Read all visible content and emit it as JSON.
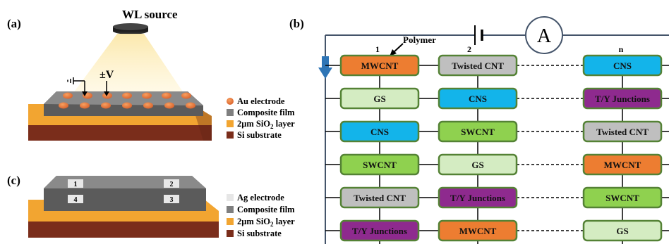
{
  "panel_a": {
    "label": "(a)",
    "source": "WL source",
    "voltage": "±V",
    "legend": [
      {
        "text": "Au electrode",
        "color": "#ee7d3b"
      },
      {
        "text": "Composite film",
        "color": "#7f7f7f"
      },
      {
        "text": "2μm SiO",
        "sub": "2",
        "tail": " layer",
        "color": "#f2a531"
      },
      {
        "text": "Si substrate",
        "color": "#7a2d1b"
      }
    ]
  },
  "panel_c": {
    "label": "(c)",
    "pads": [
      "1",
      "2",
      "4",
      "3"
    ],
    "legend": [
      {
        "text": "Ag electrode",
        "color": "#e6e6e6"
      },
      {
        "text": "Composite film",
        "color": "#7f7f7f"
      },
      {
        "text": "2μm SiO",
        "sub": "2",
        "tail": " layer",
        "color": "#f2a531"
      },
      {
        "text": "Si substrate",
        "color": "#7a2d1b"
      }
    ]
  },
  "panel_b": {
    "label": "(b)",
    "meter": "A",
    "polymer": "Polymer",
    "columns": [
      "1",
      "2",
      "n"
    ],
    "colors": {
      "MWCNT": "#ed7d31",
      "Twisted CNT": "#bfbfbf",
      "CNS": "#13b4ea",
      "GS": "#d4ecc2",
      "T/Y Junctions": "#8e2a8e",
      "SWCNT": "#8fd14f"
    },
    "rows": [
      [
        "MWCNT",
        "Twisted CNT",
        "CNS"
      ],
      [
        "GS",
        "CNS",
        "T/Y Junctions"
      ],
      [
        "CNS",
        "SWCNT",
        "Twisted CNT"
      ],
      [
        "SWCNT",
        "GS",
        "MWCNT"
      ],
      [
        "Twisted CNT",
        "T/Y Junctions",
        "SWCNT"
      ],
      [
        "T/Y Junctions",
        "MWCNT",
        "GS"
      ]
    ]
  }
}
